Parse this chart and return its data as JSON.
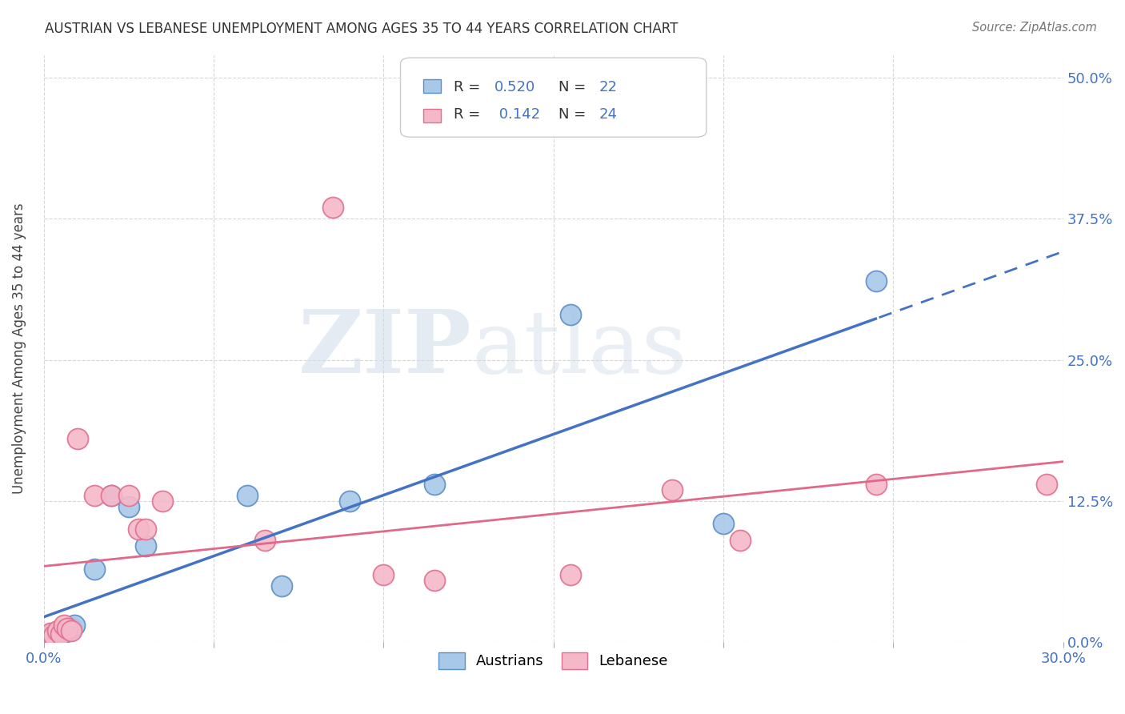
{
  "title": "AUSTRIAN VS LEBANESE UNEMPLOYMENT AMONG AGES 35 TO 44 YEARS CORRELATION CHART",
  "source": "Source: ZipAtlas.com",
  "ylabel": "Unemployment Among Ages 35 to 44 years",
  "ytick_vals": [
    0.0,
    0.125,
    0.25,
    0.375,
    0.5
  ],
  "ytick_labels": [
    "0.0%",
    "12.5%",
    "25.0%",
    "37.5%",
    "50.0%"
  ],
  "xlim": [
    0.0,
    0.3
  ],
  "ylim": [
    0.0,
    0.52
  ],
  "austrians_fill": "#a8c8e8",
  "austrians_edge": "#5b8fc9",
  "austrians_line": "#4472c4",
  "lebanese_fill": "#f5b8c8",
  "lebanese_edge": "#e07090",
  "lebanese_line": "#e06888",
  "legend_R_a": "0.520",
  "legend_N_a": "22",
  "legend_R_l": "0.142",
  "legend_N_l": "24",
  "label_color": "#4472c4",
  "austrians_x": [
    0.001,
    0.002,
    0.0025,
    0.003,
    0.004,
    0.0045,
    0.005,
    0.006,
    0.007,
    0.008,
    0.009,
    0.015,
    0.02,
    0.025,
    0.03,
    0.06,
    0.07,
    0.09,
    0.115,
    0.155,
    0.2,
    0.245
  ],
  "austrians_y": [
    0.005,
    0.007,
    0.005,
    0.008,
    0.006,
    0.008,
    0.007,
    0.009,
    0.01,
    0.012,
    0.015,
    0.065,
    0.13,
    0.12,
    0.085,
    0.13,
    0.05,
    0.125,
    0.14,
    0.29,
    0.105,
    0.32
  ],
  "lebanese_x": [
    0.001,
    0.002,
    0.003,
    0.004,
    0.005,
    0.006,
    0.007,
    0.008,
    0.01,
    0.015,
    0.02,
    0.025,
    0.028,
    0.03,
    0.035,
    0.065,
    0.085,
    0.1,
    0.115,
    0.155,
    0.185,
    0.205,
    0.245,
    0.295
  ],
  "lebanese_y": [
    0.005,
    0.008,
    0.006,
    0.01,
    0.007,
    0.015,
    0.012,
    0.01,
    0.18,
    0.13,
    0.13,
    0.13,
    0.1,
    0.1,
    0.125,
    0.09,
    0.385,
    0.06,
    0.055,
    0.06,
    0.135,
    0.09,
    0.14,
    0.14
  ],
  "bg_color": "#ffffff",
  "grid_color": "#cccccc",
  "title_fontsize": 12,
  "axis_label_fontsize": 12,
  "tick_fontsize": 13
}
